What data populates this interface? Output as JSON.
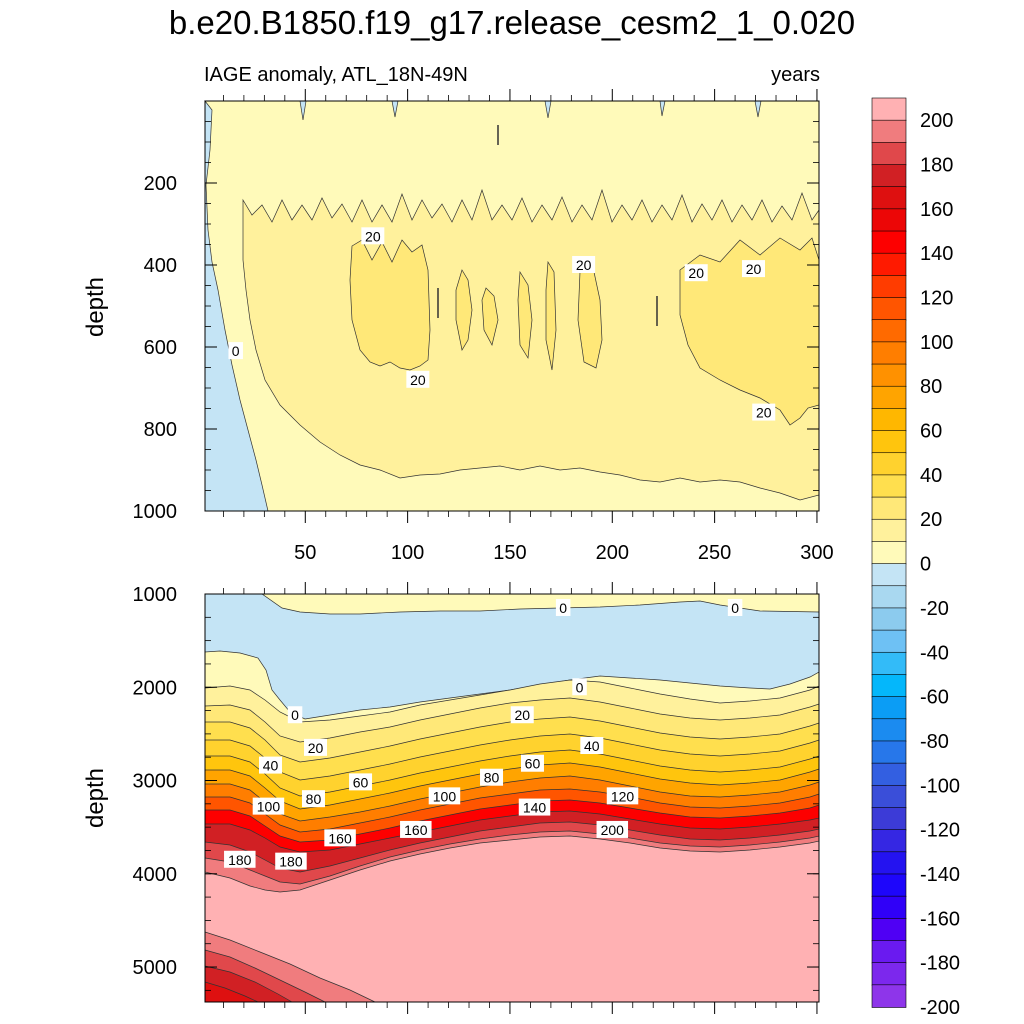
{
  "chart_data": [
    {
      "type": "contour",
      "title": "b.e20.B1850.f19_g17.release_cesm2_1_0.020",
      "left_string": "IAGE anomaly, ATL_18N-49N",
      "right_string": "years",
      "panel": "upper",
      "xlabel": "",
      "ylabel": "depth",
      "xlim": [
        1,
        301
      ],
      "ylim": [
        0,
        1000
      ],
      "x_ticks": [
        50,
        100,
        150,
        200,
        250,
        300
      ],
      "y_ticks": [
        200,
        400,
        600,
        800,
        1000
      ],
      "contour_labels": [
        {
          "text": "20",
          "x": 83,
          "y": 330
        },
        {
          "text": "20",
          "x": 186,
          "y": 400
        },
        {
          "text": "20",
          "x": 241,
          "y": 420
        },
        {
          "text": "20",
          "x": 269,
          "y": 410
        },
        {
          "text": "0",
          "x": 16,
          "y": 610
        },
        {
          "text": "20",
          "x": 105,
          "y": 680
        },
        {
          "text": "20",
          "x": 274,
          "y": 760
        }
      ]
    },
    {
      "type": "contour",
      "panel": "lower",
      "xlabel": "",
      "ylabel": "depth",
      "xlim": [
        1,
        301
      ],
      "ylim": [
        1000,
        5375
      ],
      "y_ticks": [
        1000,
        2000,
        3000,
        4000,
        5000
      ],
      "contour_labels": [
        {
          "text": "0",
          "x": 176,
          "y": 1150
        },
        {
          "text": "0",
          "x": 260,
          "y": 1150
        },
        {
          "text": "0",
          "x": 184,
          "y": 2000
        },
        {
          "text": "0",
          "x": 45,
          "y": 2300
        },
        {
          "text": "20",
          "x": 156,
          "y": 2300
        },
        {
          "text": "20",
          "x": 55,
          "y": 2650
        },
        {
          "text": "40",
          "x": 33,
          "y": 2840
        },
        {
          "text": "40",
          "x": 190,
          "y": 2630
        },
        {
          "text": "60",
          "x": 77,
          "y": 3020
        },
        {
          "text": "60",
          "x": 161,
          "y": 2820
        },
        {
          "text": "80",
          "x": 54,
          "y": 3200
        },
        {
          "text": "80",
          "x": 141,
          "y": 2970
        },
        {
          "text": "100",
          "x": 32,
          "y": 3280
        },
        {
          "text": "100",
          "x": 118,
          "y": 3170
        },
        {
          "text": "120",
          "x": 205,
          "y": 3170
        },
        {
          "text": "140",
          "x": 162,
          "y": 3290
        },
        {
          "text": "160",
          "x": 104,
          "y": 3530
        },
        {
          "text": "160",
          "x": 67,
          "y": 3620
        },
        {
          "text": "180",
          "x": 18,
          "y": 3850
        },
        {
          "text": "180",
          "x": 43,
          "y": 3870
        },
        {
          "text": "200",
          "x": 200,
          "y": 3530
        }
      ]
    }
  ],
  "colorbar": {
    "labels": [
      "200",
      "180",
      "160",
      "140",
      "120",
      "100",
      "80",
      "60",
      "40",
      "20",
      "0",
      "-20",
      "-40",
      "-60",
      "-80",
      "-100",
      "-120",
      "-140",
      "-160",
      "-180",
      "-200"
    ],
    "levels_from_top": [
      210,
      200,
      190,
      180,
      170,
      160,
      150,
      140,
      130,
      120,
      110,
      100,
      90,
      80,
      70,
      60,
      50,
      40,
      30,
      20,
      10,
      0,
      -10,
      -20,
      -30,
      -40,
      -50,
      -60,
      -70,
      -80,
      -90,
      -100,
      -110,
      -120,
      -130,
      -140,
      -150,
      -160,
      -170,
      -180,
      -190,
      -200
    ],
    "colors_from_top": [
      "#ffb1b3",
      "#f07c7e",
      "#e0484b",
      "#d12024",
      "#de1010",
      "#ec0606",
      "#fd0000",
      "#ff1a00",
      "#ff3c00",
      "#ff5500",
      "#ff6a00",
      "#ff7e00",
      "#ff9100",
      "#ffa400",
      "#ffb700",
      "#ffc50d",
      "#ffd22e",
      "#ffdf4e",
      "#ffe878",
      "#fff19c",
      "#fffaba",
      "#c4e4f5",
      "#a9d8f0",
      "#8ccbee",
      "#6ec1f4",
      "#33bbf8",
      "#04b7fb",
      "#0b9df5",
      "#1b8bf0",
      "#2777ea",
      "#335fe1",
      "#3a4ed9",
      "#3c3bd7",
      "#3527e3",
      "#2413f0",
      "#1e06fb",
      "#3000f8",
      "#4f00f4",
      "#6a1af0",
      "#7c28ed",
      "#8e35ea"
    ],
    "colors": {
      "neg_light": "#c4e4f5",
      "pos_0_20": "#fffaba",
      "pos_20_40": "#fff19c",
      "pos_40_60": "#ffe878",
      "pale_red": "#ffb1b3",
      "red_190": "#f07c7e",
      "red_180": "#e0484b",
      "red_170": "#d12024",
      "red_deep": "#de1010"
    }
  }
}
